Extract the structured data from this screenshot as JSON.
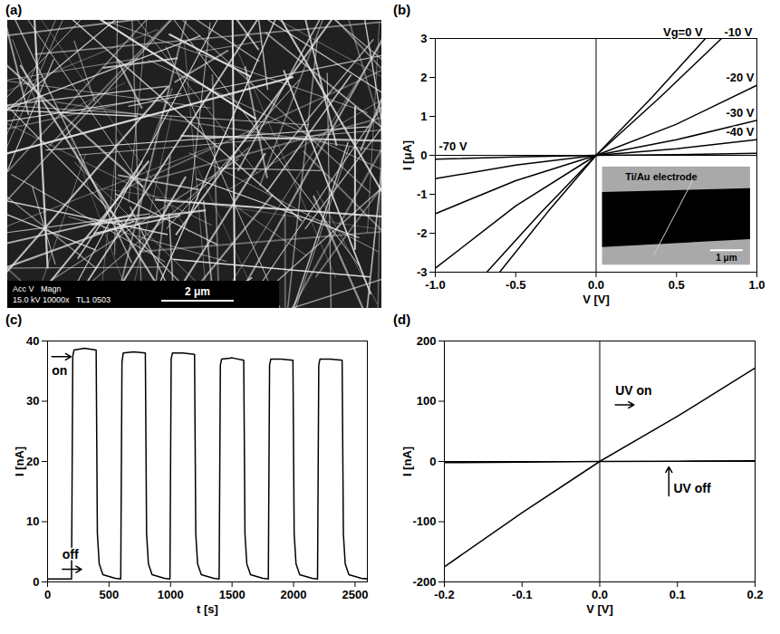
{
  "chart_data": [
    {
      "type": "image",
      "panel": "(a)",
      "scale_bar": "2 μm",
      "info_text": [
        "Acc V   Magn",
        "15.0 kV 10000x   TL1 0503"
      ]
    },
    {
      "type": "line",
      "panel": "(b)",
      "x_label": "V [V]",
      "y_label": "I [μA]",
      "xlim": [
        -1,
        1
      ],
      "ylim": [
        -3,
        3
      ],
      "xticks": [
        {
          "value": -1,
          "label": "-1.0"
        },
        -0.5,
        {
          "value": 0,
          "label": "0.0"
        },
        0.5,
        {
          "value": 1,
          "label": "1.0"
        }
      ],
      "yticks": [
        -3,
        -2,
        -1,
        0,
        1,
        2,
        3
      ],
      "series": [
        {
          "name": "Vg=0 V",
          "color": "#000000",
          "x": [
            -0.6,
            -0.3,
            0,
            0.35,
            0.68
          ],
          "values": [
            -3,
            -1.45,
            0,
            1.5,
            3
          ]
        },
        {
          "name": "-10 V",
          "color": "#000000",
          "x": [
            -0.68,
            -0.35,
            0,
            0.4,
            0.78
          ],
          "values": [
            -3,
            -1.5,
            0,
            1.5,
            3
          ]
        },
        {
          "name": "-20 V",
          "color": "#000000",
          "x": [
            -1,
            -0.5,
            0,
            0.5,
            1
          ],
          "values": [
            -2.9,
            -1.3,
            0,
            0.8,
            1.8
          ]
        },
        {
          "name": "-30 V",
          "color": "#000000",
          "x": [
            -1,
            -0.5,
            0,
            0.5,
            1
          ],
          "values": [
            -1.5,
            -0.65,
            0,
            0.4,
            0.9
          ]
        },
        {
          "name": "-40 V",
          "color": "#000000",
          "x": [
            -1,
            -0.5,
            0,
            0.5,
            1
          ],
          "values": [
            -0.6,
            -0.25,
            0,
            0.17,
            0.4
          ]
        },
        {
          "name": "-70 V",
          "color": "#000000",
          "x": [
            -1,
            -0.5,
            0,
            0.5,
            1
          ],
          "values": [
            -0.1,
            -0.04,
            0,
            0.02,
            0.05
          ]
        }
      ],
      "inset": {
        "label": "Ti/Au electrode",
        "scale_bar": "1 μm"
      }
    },
    {
      "type": "line",
      "panel": "(c)",
      "x_label": "t [s]",
      "y_label": "I [nA]",
      "xlim": [
        0,
        2600
      ],
      "ylim": [
        0,
        40
      ],
      "xticks": [
        0,
        500,
        1000,
        1500,
        2000,
        2500
      ],
      "yticks": [
        0,
        10,
        20,
        30,
        40
      ],
      "series": [
        {
          "color": "#000000",
          "x": [
            0,
            195,
            205,
            215,
            300,
            395,
            405,
            420,
            450,
            550,
            595,
            605,
            615,
            700,
            795,
            805,
            820,
            850,
            950,
            995,
            1005,
            1015,
            1100,
            1195,
            1205,
            1220,
            1250,
            1350,
            1395,
            1405,
            1415,
            1500,
            1595,
            1605,
            1620,
            1650,
            1750,
            1795,
            1805,
            1815,
            1900,
            1995,
            2005,
            2020,
            2050,
            2150,
            2195,
            2205,
            2215,
            2300,
            2395,
            2405,
            2420,
            2450,
            2550,
            2600
          ],
          "values": [
            0.5,
            0.5,
            37.5,
            38.5,
            38.8,
            38.5,
            8,
            3,
            1.2,
            0.6,
            0.5,
            36.5,
            38,
            38.2,
            38,
            8,
            3,
            1.2,
            0.6,
            0.5,
            37,
            38,
            38,
            37.8,
            8,
            3,
            1.2,
            0.6,
            0.5,
            36,
            37,
            37.2,
            36.8,
            8,
            3,
            1.2,
            0.6,
            0.5,
            36,
            37,
            37,
            36.8,
            8,
            3,
            1.2,
            0.6,
            0.5,
            36,
            37,
            37,
            36.8,
            8,
            3,
            1.2,
            0.6,
            0.5
          ]
        }
      ],
      "annotations": [
        {
          "text": "on",
          "x": 35,
          "y": 35,
          "arrow": "right-above"
        },
        {
          "text": "off",
          "x": 120,
          "y": 4.5,
          "arrow": "right-below"
        }
      ]
    },
    {
      "type": "line",
      "panel": "(d)",
      "x_label": "V [V]",
      "y_label": "I [nA]",
      "xlim": [
        -0.2,
        0.2
      ],
      "ylim": [
        -200,
        200
      ],
      "xticks": [
        -0.2,
        -0.1,
        {
          "value": 0,
          "label": "0.0"
        },
        0.1,
        0.2
      ],
      "yticks": [
        -200,
        -100,
        0,
        100,
        200
      ],
      "series": [
        {
          "color": "#000000",
          "x": [
            -0.2,
            -0.1,
            0,
            0.1,
            0.2
          ],
          "values": [
            -175,
            -85,
            0,
            75,
            155
          ]
        },
        {
          "color": "#000000",
          "x": [
            -0.2,
            -0.1,
            0,
            0.1,
            0.2
          ],
          "values": [
            -2,
            -1,
            0,
            0.5,
            1
          ]
        }
      ],
      "annotations": [
        {
          "text": "UV on",
          "x": 0.02,
          "y": 118,
          "arrow": "right-below"
        },
        {
          "text": "UV off",
          "x": 0.095,
          "y": -45,
          "arrow": "up"
        }
      ]
    }
  ]
}
